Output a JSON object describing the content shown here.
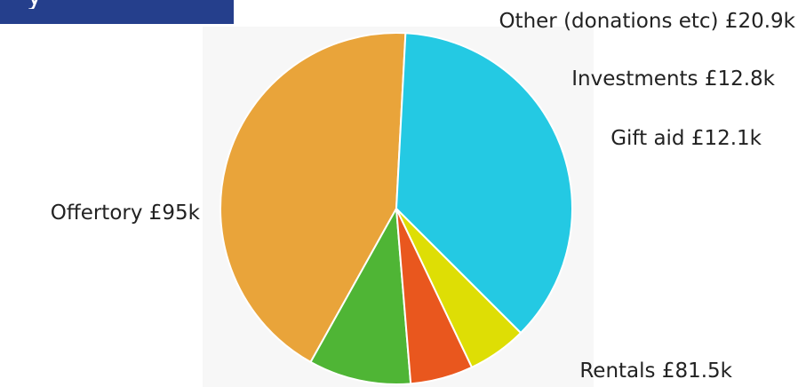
{
  "header": {
    "fragment": "y"
  },
  "chart_data": {
    "type": "pie",
    "title": "",
    "slices": [
      {
        "label": "Offertory",
        "value": 95.0,
        "display": "Offertory £95k",
        "color": "#e9a43a"
      },
      {
        "label": "Other (donations etc)",
        "value": 20.9,
        "display": "Other (donations etc) £20.9k",
        "color": "#4fb535"
      },
      {
        "label": "Investments",
        "value": 12.8,
        "display": "Investments £12.8k",
        "color": "#e9571e"
      },
      {
        "label": "Gift aid",
        "value": 12.1,
        "display": "Gift aid £12.1k",
        "color": "#dede05"
      },
      {
        "label": "Rentals",
        "value": 81.5,
        "display": "Rentals £81.5k",
        "color": "#24c9e3"
      }
    ],
    "legend": "none",
    "slice_border_color": "#ffffff"
  }
}
